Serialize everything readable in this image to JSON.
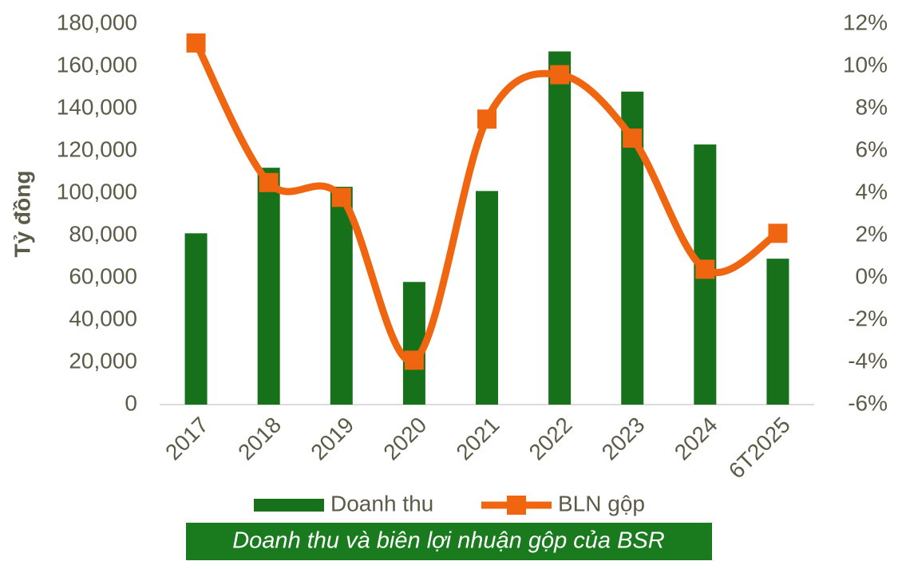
{
  "chart_data": {
    "type": "bar-line",
    "title": "Doanh thu và biên lợi nhuận gộp của BSR",
    "ylabel": "Tỷ đồng",
    "categories": [
      "2017",
      "2018",
      "2019",
      "2020",
      "2021",
      "2022",
      "2023",
      "2024",
      "6T2025"
    ],
    "series": [
      {
        "name": "Doanh thu",
        "type": "bar",
        "color": "#17701a",
        "values": [
          81000,
          112000,
          103000,
          58000,
          101000,
          167000,
          148000,
          123000,
          69000
        ]
      },
      {
        "name": "BLN gộp",
        "type": "line",
        "axis": "y2",
        "color": "#f0650f",
        "values": [
          11.1,
          4.5,
          3.8,
          -3.9,
          7.5,
          9.6,
          6.6,
          0.4,
          2.1
        ]
      }
    ],
    "ylim": [
      0,
      180000
    ],
    "yticks": [
      0,
      {
        "value": 20000,
        "label": "20,000"
      },
      {
        "value": 40000,
        "label": "40,000"
      },
      {
        "value": 60000,
        "label": "60,000"
      },
      {
        "value": 80000,
        "label": "80,000"
      },
      {
        "value": 100000,
        "label": "100,000"
      },
      {
        "value": 120000,
        "label": "120,000"
      },
      {
        "value": 140000,
        "label": "140,000"
      },
      {
        "value": 160000,
        "label": "160,000"
      },
      {
        "value": 180000,
        "label": "180,000"
      }
    ],
    "y2lim": [
      -6,
      12
    ],
    "y2ticks": [
      {
        "value": -6,
        "label": "-6%"
      },
      {
        "value": -4,
        "label": "-4%"
      },
      {
        "value": -2,
        "label": "-2%"
      },
      {
        "value": 0,
        "label": "0%"
      },
      {
        "value": 2,
        "label": "2%"
      },
      {
        "value": 4,
        "label": "4%"
      },
      {
        "value": 6,
        "label": "6%"
      },
      {
        "value": 8,
        "label": "8%"
      },
      {
        "value": 10,
        "label": "10%"
      },
      {
        "value": 12,
        "label": "12%"
      }
    ],
    "legend": "bottom"
  }
}
